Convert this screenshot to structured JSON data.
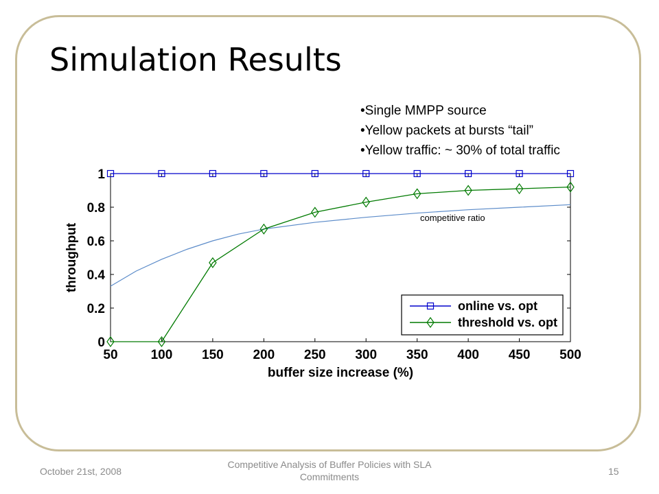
{
  "slide": {
    "title": "Simulation Results",
    "bullets": [
      "Single MMPP source",
      "Yellow packets at bursts “tail”",
      "Yellow traffic: ~ 30% of total traffic"
    ]
  },
  "footer": {
    "date": "October 21st, 2008",
    "title": "Competitive Analysis of Buffer Policies with SLA Commitments",
    "page": "15"
  },
  "colors": {
    "frame": "#c8bd98",
    "online": "#0000cc",
    "threshold": "#007a00",
    "competitive": "#5b8bc9"
  },
  "chart_data": {
    "type": "line",
    "xlabel": "buffer size increase (%)",
    "ylabel": "throughput",
    "xlim": [
      50,
      500
    ],
    "ylim": [
      0,
      1
    ],
    "x_ticks": [
      "50",
      "100",
      "150",
      "200",
      "250",
      "300",
      "350",
      "400",
      "450",
      "500"
    ],
    "y_ticks": [
      "0",
      "0.2",
      "0.4",
      "0.6",
      "0.8",
      "1"
    ],
    "grid": false,
    "legend_position": "bottom-right",
    "x": [
      50,
      100,
      150,
      200,
      250,
      300,
      350,
      400,
      450,
      500
    ],
    "series": [
      {
        "name": "online vs. opt",
        "marker": "square",
        "values": [
          1,
          1,
          1,
          1,
          1,
          1,
          1,
          1,
          1,
          1
        ]
      },
      {
        "name": "threshold vs. opt",
        "marker": "diamond",
        "values": [
          0,
          0,
          0.47,
          0.67,
          0.77,
          0.83,
          0.88,
          0.9,
          0.91,
          0.92
        ]
      },
      {
        "name": "",
        "marker": "none",
        "x": [
          50,
          75,
          100,
          125,
          150,
          175,
          200,
          250,
          300,
          350,
          400,
          450,
          500
        ],
        "values": [
          0.33,
          0.42,
          0.49,
          0.55,
          0.6,
          0.64,
          0.67,
          0.71,
          0.74,
          0.765,
          0.785,
          0.8,
          0.815
        ]
      }
    ],
    "annotations": [
      {
        "text": "competitive ratio"
      }
    ]
  }
}
